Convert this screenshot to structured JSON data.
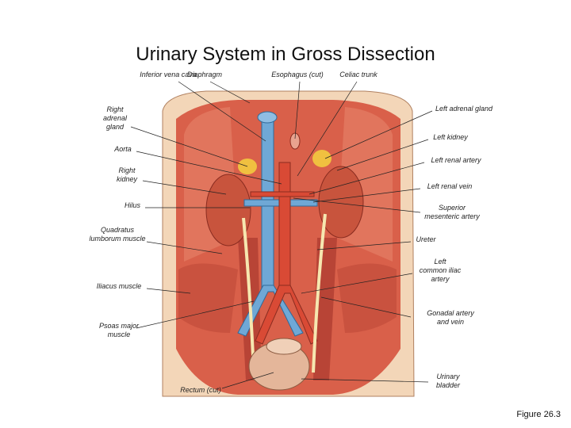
{
  "title": "Urinary System in Gross Dissection",
  "caption": "Figure 26.3",
  "figure": {
    "labels": [
      {
        "lines": [
          "Inferior vena cava"
        ]
      },
      {
        "lines": [
          "Diaphragm"
        ]
      },
      {
        "lines": [
          "Esophagus (cut)"
        ]
      },
      {
        "lines": [
          "Celiac trunk"
        ]
      },
      {
        "lines": [
          "Right",
          "adrenal",
          "gland"
        ]
      },
      {
        "lines": [
          "Aorta"
        ]
      },
      {
        "lines": [
          "Right",
          "kidney"
        ]
      },
      {
        "lines": [
          "Hilus"
        ]
      },
      {
        "lines": [
          "Quadratus",
          "lumborum muscle"
        ]
      },
      {
        "lines": [
          "Iliacus muscle"
        ]
      },
      {
        "lines": [
          "Psoas major",
          "muscle"
        ]
      },
      {
        "lines": [
          "Rectum (cut)"
        ]
      },
      {
        "lines": [
          "Left adrenal gland"
        ]
      },
      {
        "lines": [
          "Left kidney"
        ]
      },
      {
        "lines": [
          "Left renal artery"
        ]
      },
      {
        "lines": [
          "Left renal vein"
        ]
      },
      {
        "lines": [
          "Superior",
          "mesenteric artery"
        ]
      },
      {
        "lines": [
          "Ureter"
        ]
      },
      {
        "lines": [
          "Left",
          "common iliac",
          "artery"
        ]
      },
      {
        "lines": [
          "Gonadal artery",
          "and vein"
        ]
      },
      {
        "lines": [
          "Urinary",
          "bladder"
        ]
      }
    ]
  }
}
